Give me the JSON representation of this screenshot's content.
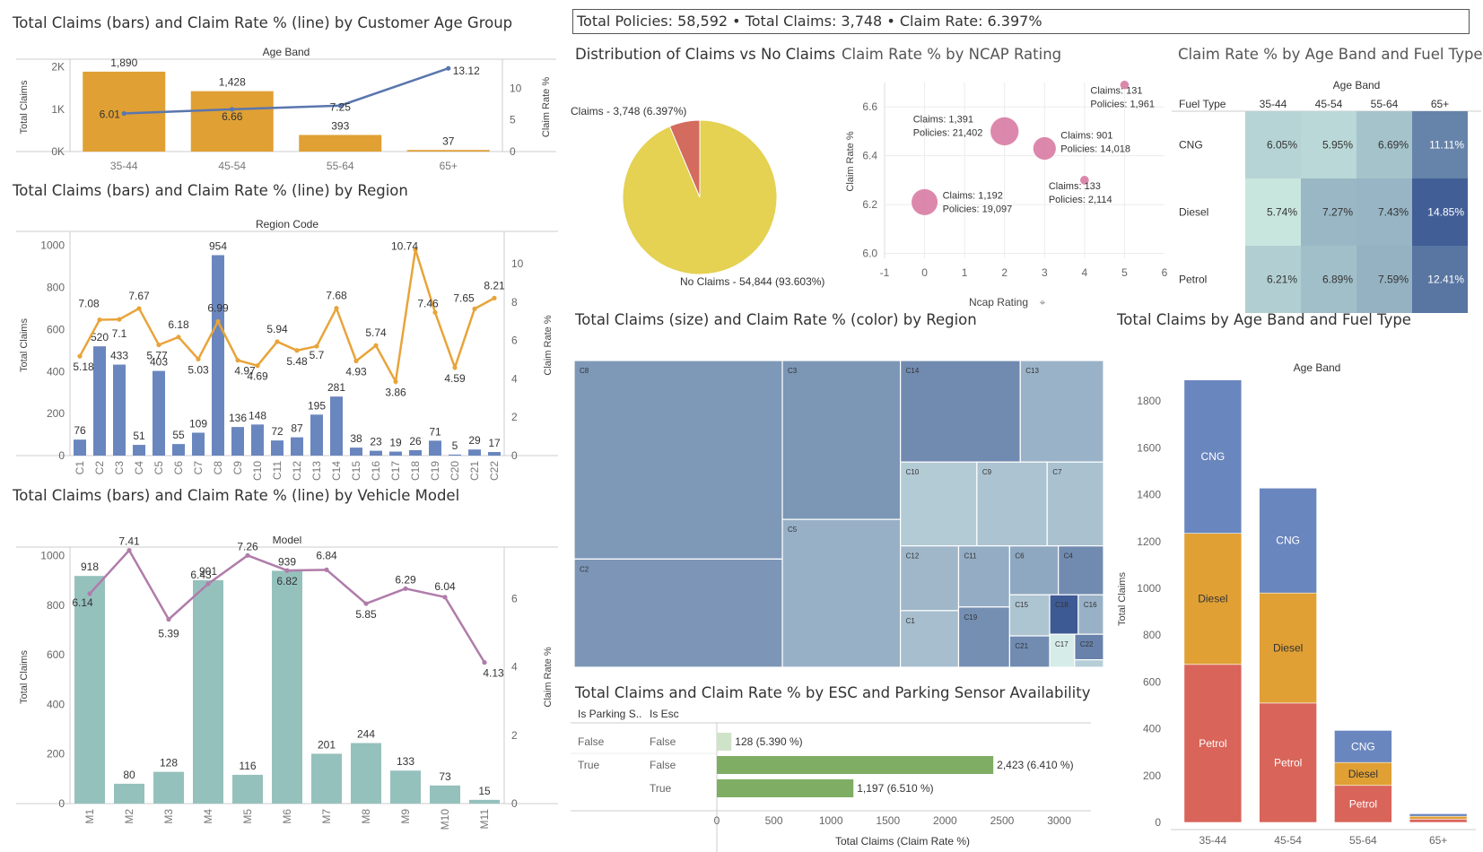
{
  "kpi": "Total Policies: 58,592 • Total Claims: 3,748 • Claim Rate: 6.397%",
  "titles": {
    "age": "Total Claims (bars) and Claim Rate % (line) by Customer Age Group",
    "region": "Total Claims (bars) and Claim Rate % (line) by Region",
    "model": "Total Claims (bars) and Claim Rate % (line) by Vehicle Model",
    "pie": "Distribution of Claims vs No Claims",
    "ncap": "Claim Rate % by NCAP Rating",
    "heat": "Claim Rate % by Age Band and Fuel Type",
    "treemap": "Total Claims (size) and Claim Rate % (color) by Region",
    "esc": "Total Claims and Claim Rate % by ESC and Parking Sensor Availability",
    "stack": "Total Claims by Age Band and Fuel Type"
  },
  "colors": {
    "orange": "#E0A034",
    "blue_bar": "#6A86BE",
    "teal_bar": "#95C1BD",
    "line_blue": "#5A76AE",
    "line_orange": "#E8A43A",
    "line_purple": "#B07CAA",
    "pie_yellow": "#E5D152",
    "pie_red": "#D36B5E",
    "bubble": "#D87BA3",
    "green": "#7FAD63",
    "cng": "#6A86BE",
    "diesel": "#E0A034",
    "petrol": "#D9645A"
  },
  "chart_data": [
    {
      "id": "age",
      "type": "bar",
      "header": "Age Band",
      "ylabel": "Total Claims",
      "y2label": "Claim Rate %",
      "categories": [
        "35-44",
        "45-54",
        "55-64",
        "65+"
      ],
      "bars": [
        1890,
        1428,
        393,
        37
      ],
      "bar_labels": [
        "1,890",
        "1,428",
        "393",
        "37"
      ],
      "line": [
        6.01,
        6.66,
        7.25,
        13.12
      ],
      "line_labels": [
        "6.01",
        "6.66",
        "7.25",
        "13.12"
      ],
      "yticks": [
        "0K",
        "1K",
        "2K"
      ],
      "y2ticks": [
        "0",
        "5",
        "10"
      ],
      "ylim": [
        0,
        2100
      ],
      "y2lim": [
        0,
        14
      ]
    },
    {
      "id": "region",
      "type": "bar",
      "header": "Region Code",
      "ylabel": "Total Claims",
      "y2label": "Claim Rate %",
      "categories": [
        "C1",
        "C2",
        "C3",
        "C4",
        "C5",
        "C6",
        "C7",
        "C8",
        "C9",
        "C10",
        "C11",
        "C12",
        "C13",
        "C14",
        "C15",
        "C16",
        "C17",
        "C18",
        "C19",
        "C20",
        "C21",
        "C22"
      ],
      "bars": [
        76,
        520,
        433,
        51,
        403,
        55,
        109,
        954,
        136,
        148,
        72,
        87,
        195,
        281,
        38,
        23,
        19,
        26,
        71,
        5,
        29,
        17
      ],
      "line": [
        5.18,
        7.08,
        7.1,
        7.67,
        5.77,
        6.18,
        5.03,
        6.99,
        4.97,
        4.69,
        5.94,
        5.48,
        5.7,
        7.68,
        4.93,
        5.74,
        3.86,
        10.74,
        7.46,
        4.59,
        7.65,
        8.21
      ],
      "line_labels": [
        "5.18",
        "7.08",
        "7.1",
        "7.67",
        "5.77",
        "6.18",
        "5.03",
        "6.99",
        "4.97",
        "4.69",
        "5.94",
        "5.48",
        "5.7",
        "7.68",
        "4.93",
        "5.74",
        "3.86",
        "10.74",
        "7.46",
        "4.59",
        "7.65",
        "8.21"
      ],
      "yticks": [
        "0",
        "200",
        "400",
        "600",
        "800",
        "1000"
      ],
      "y2ticks": [
        "0",
        "2",
        "4",
        "6",
        "8",
        "10"
      ],
      "ylim": [
        0,
        1050
      ],
      "y2lim": [
        0,
        11.5
      ]
    },
    {
      "id": "model",
      "type": "bar",
      "header": "Model",
      "ylabel": "Total Claims",
      "y2label": "Claim Rate %",
      "categories": [
        "M1",
        "M2",
        "M3",
        "M4",
        "M5",
        "M6",
        "M7",
        "M8",
        "M9",
        "M10",
        "M11"
      ],
      "bars": [
        918,
        80,
        128,
        901,
        116,
        939,
        201,
        244,
        133,
        73,
        15
      ],
      "line": [
        6.14,
        7.41,
        5.39,
        6.43,
        7.26,
        6.82,
        6.84,
        5.85,
        6.29,
        6.04,
        4.13
      ],
      "line_labels": [
        "6.14",
        "7.41",
        "5.39",
        "6.43",
        "7.26",
        "6.82",
        "6.84",
        "5.85",
        "6.29",
        "6.04",
        "4.13"
      ],
      "yticks": [
        "0",
        "200",
        "400",
        "600",
        "800",
        "1000"
      ],
      "y2ticks": [
        "0",
        "2",
        "4",
        "6"
      ],
      "ylim": [
        0,
        1020
      ],
      "y2lim": [
        0,
        7.4
      ]
    },
    {
      "id": "pie",
      "type": "pie",
      "slices": [
        {
          "name": "Claims",
          "value": 3748,
          "label": "Claims - 3,748 (6.397%)"
        },
        {
          "name": "No Claims",
          "value": 54844,
          "label": "No Claims - 54,844 (93.603%)"
        }
      ]
    },
    {
      "id": "ncap",
      "type": "scatter",
      "xlabel": "Ncap Rating",
      "ylabel": "Claim Rate %",
      "xticks": [
        "-1",
        "0",
        "1",
        "2",
        "3",
        "4",
        "5",
        "6"
      ],
      "yticks": [
        "6.0",
        "6.2",
        "6.4",
        "6.6"
      ],
      "xlim": [
        -1,
        6
      ],
      "ylim": [
        5.98,
        6.7
      ],
      "points": [
        {
          "x": 0,
          "y": 6.21,
          "claims": 1192,
          "label1": "Claims: 1,192",
          "label2": "Policies: 19,097"
        },
        {
          "x": 2,
          "y": 6.5,
          "claims": 1391,
          "label1": "Claims: 1,391",
          "label2": "Policies: 21,402"
        },
        {
          "x": 3,
          "y": 6.43,
          "claims": 901,
          "label1": "Claims: 901",
          "label2": "Policies: 14,018"
        },
        {
          "x": 4,
          "y": 6.3,
          "claims": 133,
          "label1": "Claims: 133",
          "label2": "Policies: 2,114"
        },
        {
          "x": 5,
          "y": 6.69,
          "claims": 131,
          "label1": "Claims: 131",
          "label2": "Policies: 1,961"
        }
      ]
    },
    {
      "id": "heat",
      "type": "heatmap",
      "col_header": "Age Band",
      "row_header": "Fuel Type",
      "cols": [
        "35-44",
        "45-54",
        "55-64",
        "65+"
      ],
      "rows": [
        "CNG",
        "Diesel",
        "Petrol"
      ],
      "values": [
        [
          6.05,
          5.95,
          6.69,
          11.11
        ],
        [
          5.74,
          7.27,
          7.43,
          14.85
        ],
        [
          6.21,
          6.89,
          7.59,
          12.41
        ]
      ],
      "labels": [
        [
          "6.05%",
          "5.95%",
          "6.69%",
          "11.11%"
        ],
        [
          "5.74%",
          "7.27%",
          "7.43%",
          "14.85%"
        ],
        [
          "6.21%",
          "6.89%",
          "7.59%",
          "12.41%"
        ]
      ]
    },
    {
      "id": "treemap",
      "type": "treemap",
      "items": [
        {
          "name": "C8",
          "claims": 954,
          "rate": 6.99
        },
        {
          "name": "C2",
          "claims": 520,
          "rate": 7.08
        },
        {
          "name": "C3",
          "claims": 433,
          "rate": 7.1
        },
        {
          "name": "C5",
          "claims": 403,
          "rate": 5.77
        },
        {
          "name": "C14",
          "claims": 281,
          "rate": 7.68
        },
        {
          "name": "C13",
          "claims": 195,
          "rate": 5.7
        },
        {
          "name": "C10",
          "claims": 148,
          "rate": 4.69
        },
        {
          "name": "C9",
          "claims": 136,
          "rate": 4.97
        },
        {
          "name": "C7",
          "claims": 109,
          "rate": 5.03
        },
        {
          "name": "C12",
          "claims": 87,
          "rate": 5.48
        },
        {
          "name": "C1",
          "claims": 76,
          "rate": 5.18
        },
        {
          "name": "C11",
          "claims": 72,
          "rate": 5.94
        },
        {
          "name": "C19",
          "claims": 71,
          "rate": 7.46
        },
        {
          "name": "C6",
          "claims": 55,
          "rate": 6.18
        },
        {
          "name": "C4",
          "claims": 51,
          "rate": 7.67
        },
        {
          "name": "C15",
          "claims": 38,
          "rate": 4.93
        },
        {
          "name": "C21",
          "claims": 29,
          "rate": 7.65
        },
        {
          "name": "C18",
          "claims": 26,
          "rate": 10.74
        },
        {
          "name": "C16",
          "claims": 23,
          "rate": 5.74
        },
        {
          "name": "C17",
          "claims": 19,
          "rate": 3.86
        },
        {
          "name": "C22",
          "claims": 17,
          "rate": 8.21
        },
        {
          "name": "C20",
          "claims": 5,
          "rate": 4.59
        }
      ]
    },
    {
      "id": "esc",
      "type": "bar",
      "col1": "Is Parking S..",
      "col2": "Is Esc",
      "xlabel": "Total Claims (Claim Rate %)",
      "xticks": [
        "0",
        "500",
        "1000",
        "1500",
        "2000",
        "2500",
        "3000"
      ],
      "xlim": [
        0,
        3200
      ],
      "rows": [
        {
          "parking": "False",
          "esc": "False",
          "value": 128,
          "label": "128 (5.390 %)"
        },
        {
          "parking": "True",
          "esc": "False",
          "value": 2423,
          "label": "2,423 (6.410 %)"
        },
        {
          "parking": "",
          "esc": "True",
          "value": 1197,
          "label": "1,197 (6.510 %)"
        }
      ]
    },
    {
      "id": "stack",
      "type": "bar",
      "header": "Age Band",
      "ylabel": "Total Claims",
      "categories": [
        "35-44",
        "45-54",
        "55-64",
        "65+"
      ],
      "series": [
        {
          "name": "Petrol",
          "values": [
            675,
            510,
            158,
            14
          ]
        },
        {
          "name": "Diesel",
          "values": [
            560,
            470,
            98,
            12
          ]
        },
        {
          "name": "CNG",
          "values": [
            655,
            448,
            137,
            11
          ]
        }
      ],
      "yticks": [
        "0",
        "200",
        "400",
        "600",
        "800",
        "1000",
        "1200",
        "1400",
        "1600",
        "1800"
      ],
      "ylim": [
        0,
        1950
      ]
    }
  ]
}
